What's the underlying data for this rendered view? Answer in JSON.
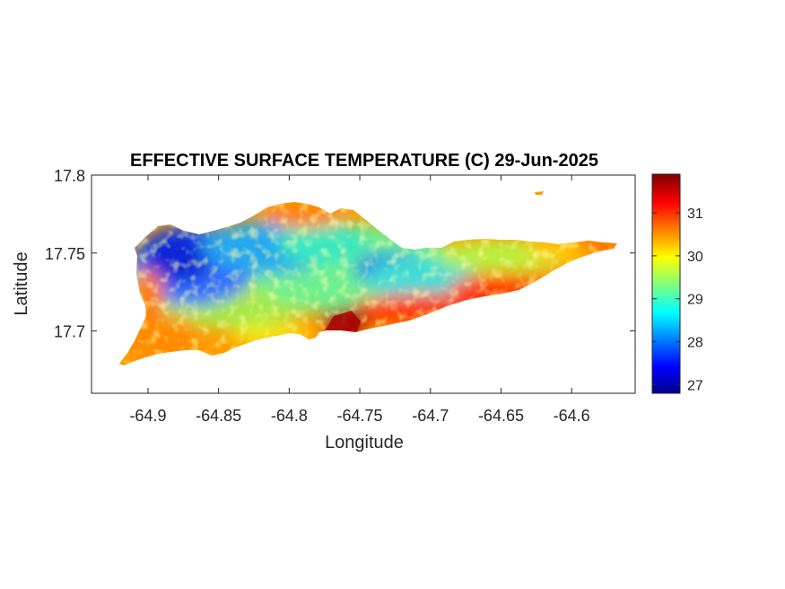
{
  "chart_data": {
    "type": "heatmap",
    "title": "EFFECTIVE SURFACE TEMPERATURE (C) 29-Jun-2025",
    "xlabel": "Longitude",
    "ylabel": "Latitude",
    "xlim": [
      -64.94,
      -64.555
    ],
    "ylim": [
      17.66,
      17.8
    ],
    "xticks": [
      -64.9,
      -64.85,
      -64.8,
      -64.75,
      -64.7,
      -64.65,
      -64.6
    ],
    "xtick_labels": [
      "-64.9",
      "-64.85",
      "-64.8",
      "-64.75",
      "-64.7",
      "-64.65",
      "-64.6"
    ],
    "yticks": [
      17.7,
      17.75,
      17.8
    ],
    "ytick_labels": [
      "17.7",
      "17.75",
      "17.8"
    ],
    "colorbar": {
      "colormap": "jet",
      "range": [
        26.8,
        31.9
      ],
      "ticks": [
        27,
        28,
        29,
        30,
        31
      ],
      "tick_labels": [
        "27",
        "28",
        "29",
        "30",
        "31"
      ],
      "colors": [
        "#00008f",
        "#0000ff",
        "#00ffff",
        "#ffff00",
        "#ff0000",
        "#800000"
      ]
    },
    "grid": false,
    "regions": [
      {
        "area": "northwest interior",
        "approx_lon": -64.86,
        "approx_lat": 17.745,
        "value": 27.8
      },
      {
        "area": "north-central interior",
        "approx_lon": -64.82,
        "approx_lat": 17.75,
        "value": 28.6
      },
      {
        "area": "west coast",
        "approx_lon": -64.89,
        "approx_lat": 17.715,
        "value": 30.2
      },
      {
        "area": "central",
        "approx_lon": -64.78,
        "approx_lat": 17.73,
        "value": 29.3
      },
      {
        "area": "south coast near -64.76",
        "approx_lon": -64.755,
        "approx_lat": 17.705,
        "value": 31.7
      },
      {
        "area": "south coast east",
        "approx_lon": -64.68,
        "approx_lat": 17.725,
        "value": 31.0
      },
      {
        "area": "east end",
        "approx_lon": -64.6,
        "approx_lat": 17.75,
        "value": 30.4
      }
    ]
  }
}
